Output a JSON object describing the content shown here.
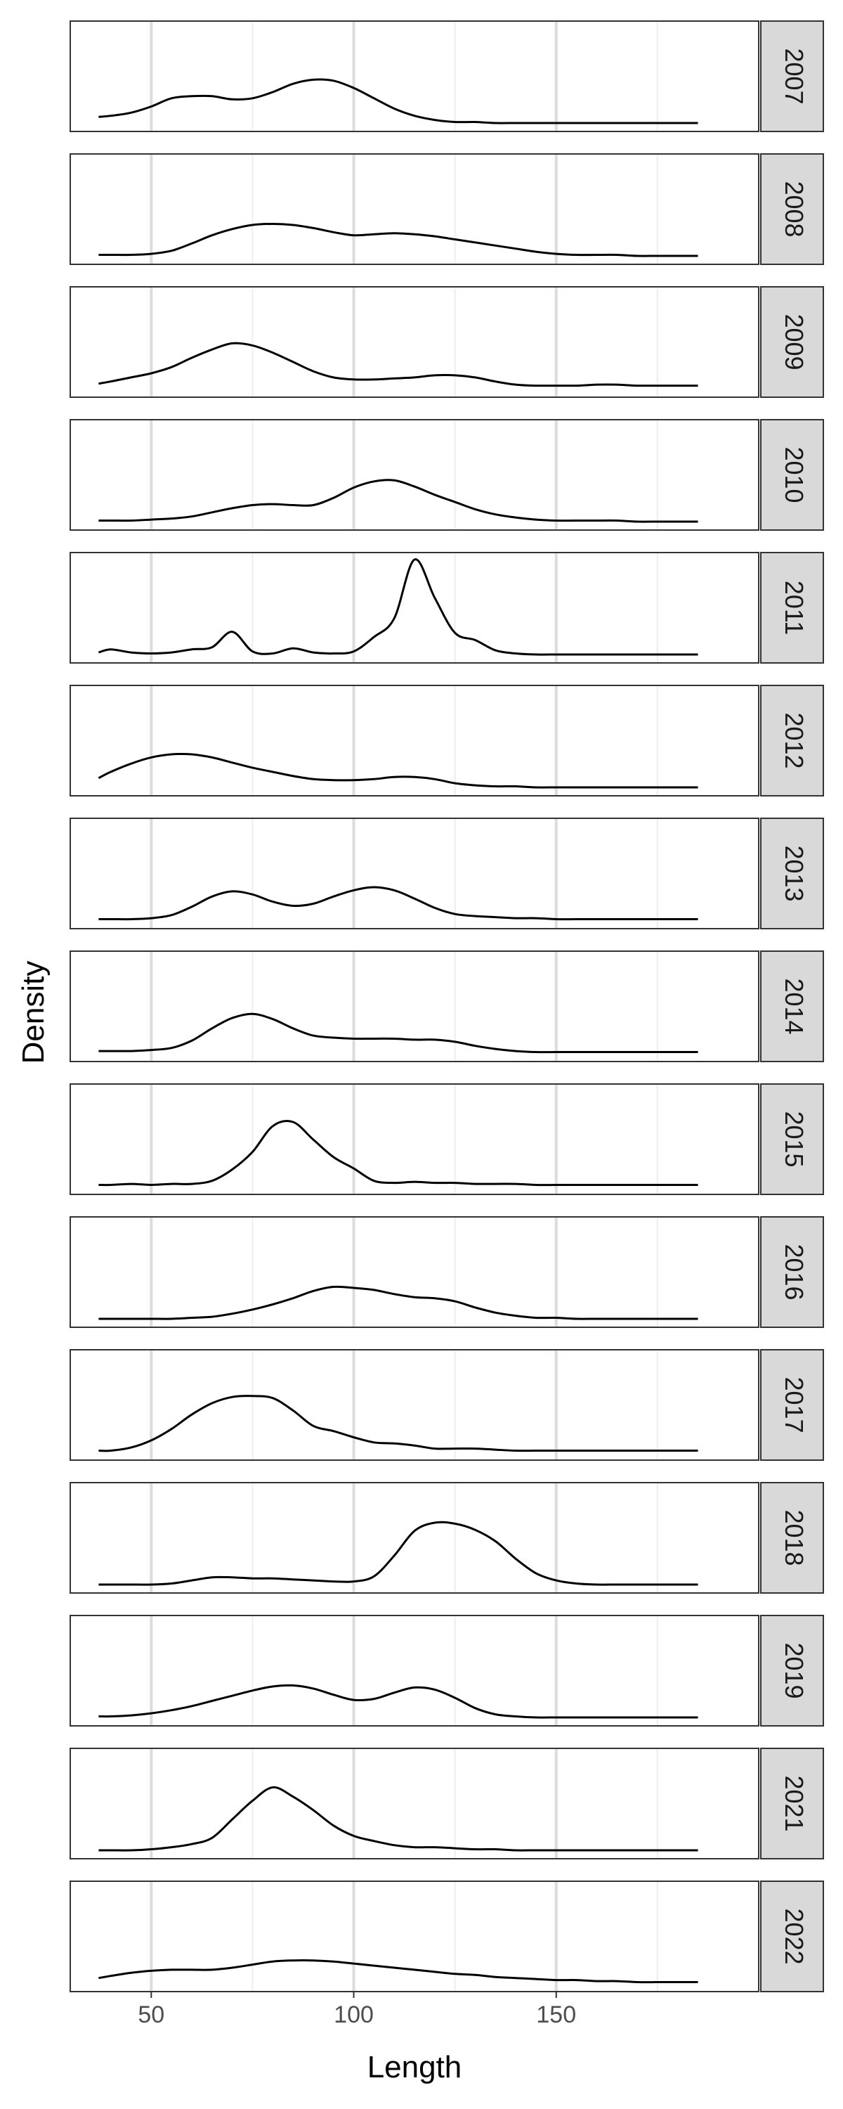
{
  "chart_data": {
    "type": "area",
    "facet_by": "year",
    "xlabel": "Length",
    "ylabel": "Density",
    "xlim": [
      30,
      200
    ],
    "x_ticks": [
      50,
      100,
      150
    ],
    "x_tick_labels": [
      "50",
      "100",
      "150"
    ],
    "grid": true,
    "theme_colors": {
      "line": "#000000",
      "panel_border": "#333333",
      "grid_major": "#dcdcdc",
      "grid_minor": "#eeeeee",
      "strip_fill": "#d9d9d9",
      "text": "#000000",
      "tick_text": "#4d4d4d"
    },
    "x": [
      37,
      40,
      45,
      50,
      55,
      60,
      65,
      70,
      75,
      80,
      85,
      90,
      95,
      100,
      105,
      110,
      115,
      120,
      125,
      130,
      135,
      140,
      145,
      150,
      155,
      160,
      165,
      170,
      175,
      180,
      185
    ],
    "panels": [
      {
        "label": "2007",
        "density": [
          0.06,
          0.07,
          0.1,
          0.16,
          0.24,
          0.26,
          0.26,
          0.23,
          0.24,
          0.3,
          0.38,
          0.42,
          0.41,
          0.34,
          0.24,
          0.14,
          0.07,
          0.03,
          0.01,
          0.01,
          0,
          0,
          0,
          0,
          0,
          0,
          0,
          0,
          0,
          0,
          0
        ]
      },
      {
        "label": "2008",
        "density": [
          0.01,
          0.01,
          0.01,
          0.02,
          0.05,
          0.12,
          0.2,
          0.26,
          0.3,
          0.31,
          0.3,
          0.27,
          0.23,
          0.2,
          0.21,
          0.22,
          0.21,
          0.19,
          0.16,
          0.13,
          0.1,
          0.07,
          0.04,
          0.02,
          0.01,
          0.01,
          0.01,
          0,
          0,
          0,
          0
        ]
      },
      {
        "label": "2009",
        "density": [
          0.05,
          0.07,
          0.11,
          0.15,
          0.21,
          0.3,
          0.38,
          0.44,
          0.42,
          0.35,
          0.26,
          0.17,
          0.11,
          0.09,
          0.09,
          0.1,
          0.11,
          0.13,
          0.13,
          0.11,
          0.07,
          0.04,
          0.03,
          0.03,
          0.03,
          0.04,
          0.04,
          0.03,
          0.03,
          0.03,
          0.03
        ]
      },
      {
        "label": "2010",
        "density": [
          0.01,
          0.01,
          0.01,
          0.02,
          0.03,
          0.05,
          0.09,
          0.13,
          0.16,
          0.17,
          0.16,
          0.16,
          0.23,
          0.33,
          0.39,
          0.4,
          0.34,
          0.26,
          0.19,
          0.12,
          0.07,
          0.04,
          0.02,
          0.01,
          0.01,
          0.01,
          0.01,
          0,
          0,
          0,
          0
        ]
      },
      {
        "label": "2011",
        "density": [
          0.02,
          0.05,
          0.02,
          0.01,
          0.02,
          0.05,
          0.07,
          0.22,
          0.03,
          0.01,
          0.06,
          0.02,
          0.01,
          0.03,
          0.17,
          0.35,
          0.92,
          0.55,
          0.21,
          0.14,
          0.04,
          0.01,
          0,
          0,
          0,
          0,
          0,
          0,
          0,
          0,
          0
        ]
      },
      {
        "label": "2012",
        "density": [
          0.09,
          0.15,
          0.23,
          0.29,
          0.32,
          0.32,
          0.29,
          0.24,
          0.19,
          0.15,
          0.11,
          0.08,
          0.07,
          0.07,
          0.08,
          0.1,
          0.1,
          0.08,
          0.04,
          0.02,
          0.01,
          0.01,
          0,
          0,
          0,
          0,
          0,
          0,
          0,
          0,
          0
        ]
      },
      {
        "label": "2013",
        "density": [
          0.01,
          0.01,
          0.01,
          0.02,
          0.05,
          0.13,
          0.23,
          0.28,
          0.25,
          0.18,
          0.14,
          0.16,
          0.23,
          0.29,
          0.32,
          0.29,
          0.21,
          0.12,
          0.06,
          0.04,
          0.03,
          0.02,
          0.02,
          0.01,
          0.01,
          0.01,
          0.01,
          0.01,
          0.01,
          0.01,
          0.01
        ]
      },
      {
        "label": "2014",
        "density": [
          0.02,
          0.02,
          0.02,
          0.03,
          0.05,
          0.12,
          0.24,
          0.34,
          0.38,
          0.33,
          0.24,
          0.17,
          0.15,
          0.14,
          0.14,
          0.14,
          0.13,
          0.13,
          0.11,
          0.07,
          0.04,
          0.02,
          0.01,
          0.01,
          0.01,
          0.01,
          0.01,
          0.01,
          0.01,
          0.01,
          0.01
        ]
      },
      {
        "label": "2015",
        "density": [
          0.01,
          0.01,
          0.02,
          0.01,
          0.02,
          0.02,
          0.05,
          0.16,
          0.33,
          0.58,
          0.62,
          0.45,
          0.28,
          0.17,
          0.05,
          0.03,
          0.04,
          0.03,
          0.03,
          0.02,
          0.02,
          0.02,
          0.01,
          0.01,
          0.01,
          0.01,
          0.01,
          0.01,
          0.01,
          0.01,
          0.01
        ]
      },
      {
        "label": "2016",
        "density": [
          0,
          0,
          0,
          0,
          0,
          0.01,
          0.02,
          0.05,
          0.09,
          0.14,
          0.2,
          0.27,
          0.31,
          0.3,
          0.28,
          0.24,
          0.21,
          0.2,
          0.17,
          0.11,
          0.06,
          0.03,
          0.01,
          0.01,
          0,
          0,
          0,
          0,
          0,
          0,
          0
        ]
      },
      {
        "label": "2017",
        "density": [
          0.01,
          0.01,
          0.04,
          0.11,
          0.22,
          0.36,
          0.47,
          0.53,
          0.54,
          0.52,
          0.4,
          0.25,
          0.2,
          0.14,
          0.09,
          0.08,
          0.06,
          0.03,
          0.03,
          0.03,
          0.02,
          0.01,
          0.01,
          0.01,
          0.01,
          0.01,
          0.01,
          0.01,
          0.01,
          0.01,
          0.01
        ]
      },
      {
        "label": "2018",
        "density": [
          0,
          0,
          0,
          0,
          0.01,
          0.04,
          0.07,
          0.07,
          0.06,
          0.06,
          0.05,
          0.04,
          0.03,
          0.03,
          0.08,
          0.28,
          0.52,
          0.6,
          0.59,
          0.53,
          0.42,
          0.25,
          0.11,
          0.04,
          0.01,
          0,
          0,
          0,
          0,
          0,
          0
        ]
      },
      {
        "label": "2019",
        "density": [
          0.01,
          0.01,
          0.02,
          0.04,
          0.07,
          0.11,
          0.16,
          0.21,
          0.26,
          0.3,
          0.31,
          0.28,
          0.22,
          0.17,
          0.18,
          0.24,
          0.29,
          0.27,
          0.19,
          0.09,
          0.03,
          0.01,
          0,
          0,
          0,
          0,
          0,
          0,
          0,
          0,
          0
        ]
      },
      {
        "label": "2021",
        "density": [
          0,
          0,
          0,
          0.01,
          0.03,
          0.06,
          0.12,
          0.3,
          0.48,
          0.61,
          0.52,
          0.39,
          0.24,
          0.14,
          0.09,
          0.05,
          0.03,
          0.03,
          0.02,
          0.01,
          0.01,
          0,
          0,
          0,
          0,
          0,
          0,
          0,
          0,
          0,
          0
        ]
      },
      {
        "label": "2022",
        "density": [
          0.05,
          0.07,
          0.1,
          0.12,
          0.13,
          0.13,
          0.13,
          0.15,
          0.18,
          0.21,
          0.22,
          0.22,
          0.21,
          0.19,
          0.17,
          0.15,
          0.13,
          0.11,
          0.09,
          0.08,
          0.06,
          0.05,
          0.04,
          0.03,
          0.03,
          0.02,
          0.02,
          0.01,
          0.01,
          0.01,
          0.01
        ]
      }
    ]
  }
}
